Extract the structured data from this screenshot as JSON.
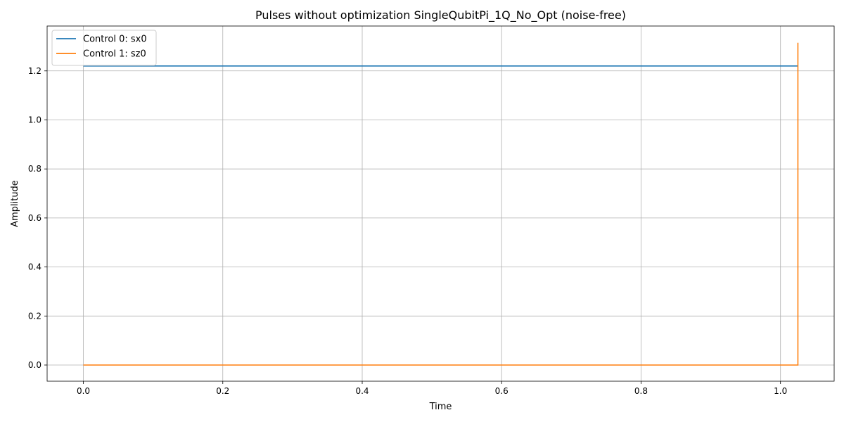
{
  "chart_data": {
    "type": "line",
    "title": "Pulses without optimization SingleQubitPi_1Q_No_Opt (noise-free)",
    "xlabel": "Time",
    "ylabel": "Amplitude",
    "xlim": [
      -0.052,
      1.077
    ],
    "ylim": [
      -0.066,
      1.383
    ],
    "xticks": [
      0.0,
      0.2,
      0.4,
      0.6,
      0.8,
      1.0
    ],
    "xtick_labels": [
      "0.0",
      "0.2",
      "0.4",
      "0.6",
      "0.8",
      "1.0"
    ],
    "yticks": [
      0.0,
      0.2,
      0.4,
      0.6,
      0.8,
      1.0,
      1.2
    ],
    "ytick_labels": [
      "0.0",
      "0.2",
      "0.4",
      "0.6",
      "0.8",
      "1.0",
      "1.2"
    ],
    "grid": true,
    "legend_position": "top-left",
    "series": [
      {
        "name": "Control 0: sx0",
        "color": "#1f77b4",
        "points": [
          [
            0.0,
            1.22
          ],
          [
            1.025,
            1.22
          ]
        ]
      },
      {
        "name": "Control 1: sz0",
        "color": "#ff7f0e",
        "points": [
          [
            0.0,
            0.0
          ],
          [
            1.025,
            0.0
          ],
          [
            1.025,
            1.315
          ]
        ]
      }
    ]
  }
}
